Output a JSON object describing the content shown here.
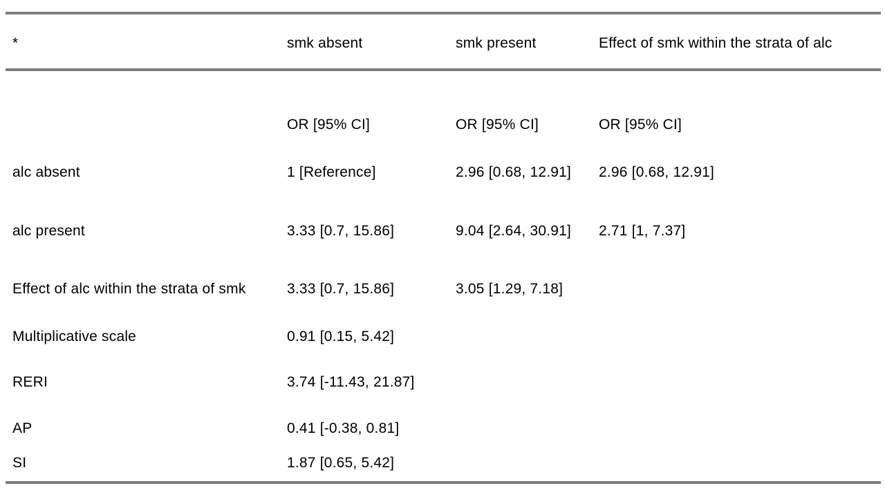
{
  "table": {
    "border_color": "#7d7d7d",
    "text_color": "#000000",
    "header": {
      "col1": "*",
      "col2": "smk absent",
      "col3": "smk present",
      "col4": "Effect of smk within the strata of alc"
    },
    "subheader": {
      "col2": "OR [95% CI]",
      "col3": "OR [95% CI]",
      "col4": "OR [95% CI]"
    },
    "rows": [
      {
        "label": "alc absent",
        "smk_absent": "1 [Reference]",
        "smk_present": "2.96 [0.68, 12.91]",
        "effect_smk": "2.96 [0.68, 12.91]"
      },
      {
        "label": "alc present",
        "smk_absent": "3.33 [0.7, 15.86]",
        "smk_present": "9.04 [2.64, 30.91]",
        "effect_smk": "2.71 [1, 7.37]"
      },
      {
        "label": "Effect of alc within the strata of smk",
        "smk_absent": "3.33 [0.7, 15.86]",
        "smk_present": "3.05 [1.29, 7.18]",
        "effect_smk": ""
      },
      {
        "label": "Multiplicative scale",
        "smk_absent": "0.91 [0.15, 5.42]",
        "smk_present": "",
        "effect_smk": ""
      },
      {
        "label": "RERI",
        "smk_absent": "3.74 [-11.43, 21.87]",
        "smk_present": "",
        "effect_smk": ""
      },
      {
        "label": "AP",
        "smk_absent": "0.41 [-0.38, 0.81]",
        "smk_present": "",
        "effect_smk": ""
      },
      {
        "label": "SI",
        "smk_absent": "1.87 [0.65, 5.42]",
        "smk_present": "",
        "effect_smk": ""
      }
    ]
  }
}
